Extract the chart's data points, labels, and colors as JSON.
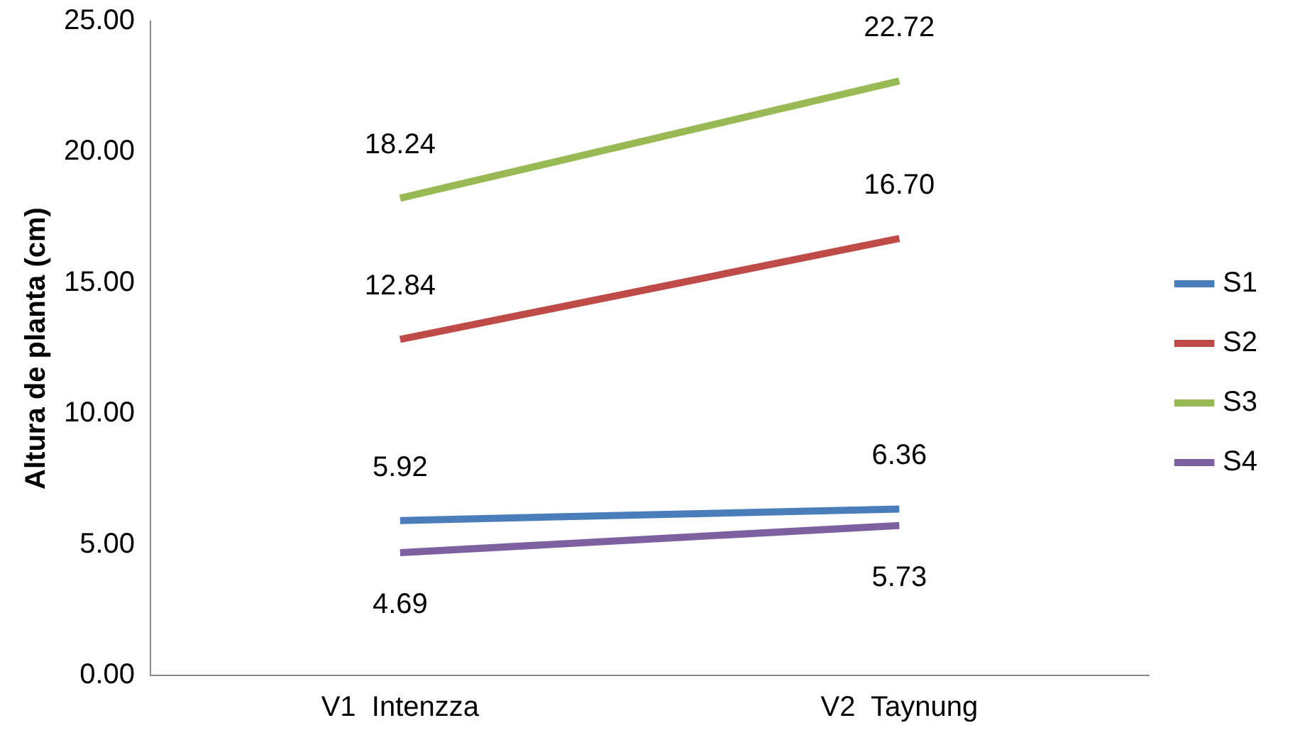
{
  "chart_data": {
    "type": "line",
    "ylabel": "Altura de planta (cm)",
    "categories": [
      "V1  Intenzza",
      "V2  Taynung"
    ],
    "series": [
      {
        "name": "S1",
        "color": "#4a7ebb",
        "values": [
          5.92,
          6.36
        ],
        "value_labels": [
          "5.92",
          "6.36"
        ]
      },
      {
        "name": "S2",
        "color": "#be4b48",
        "values": [
          12.84,
          16.7
        ],
        "value_labels": [
          "12.84",
          "16.70"
        ]
      },
      {
        "name": "S3",
        "color": "#98b954",
        "values": [
          18.24,
          22.72
        ],
        "value_labels": [
          "18.24",
          "22.72"
        ]
      },
      {
        "name": "S4",
        "color": "#7d60a0",
        "values": [
          4.69,
          5.73
        ],
        "value_labels": [
          "4.69",
          "5.73"
        ]
      }
    ],
    "ylim": [
      0,
      25
    ],
    "yticks": [
      {
        "value": 0,
        "label": "0.00"
      },
      {
        "value": 5,
        "label": "5.00"
      },
      {
        "value": 10,
        "label": "10.00"
      },
      {
        "value": 15,
        "label": "15.00"
      },
      {
        "value": 20,
        "label": "20.00"
      },
      {
        "value": 25,
        "label": "25.00"
      }
    ],
    "grid": false,
    "legend": "right",
    "marker": "none",
    "line_style": "solid"
  }
}
